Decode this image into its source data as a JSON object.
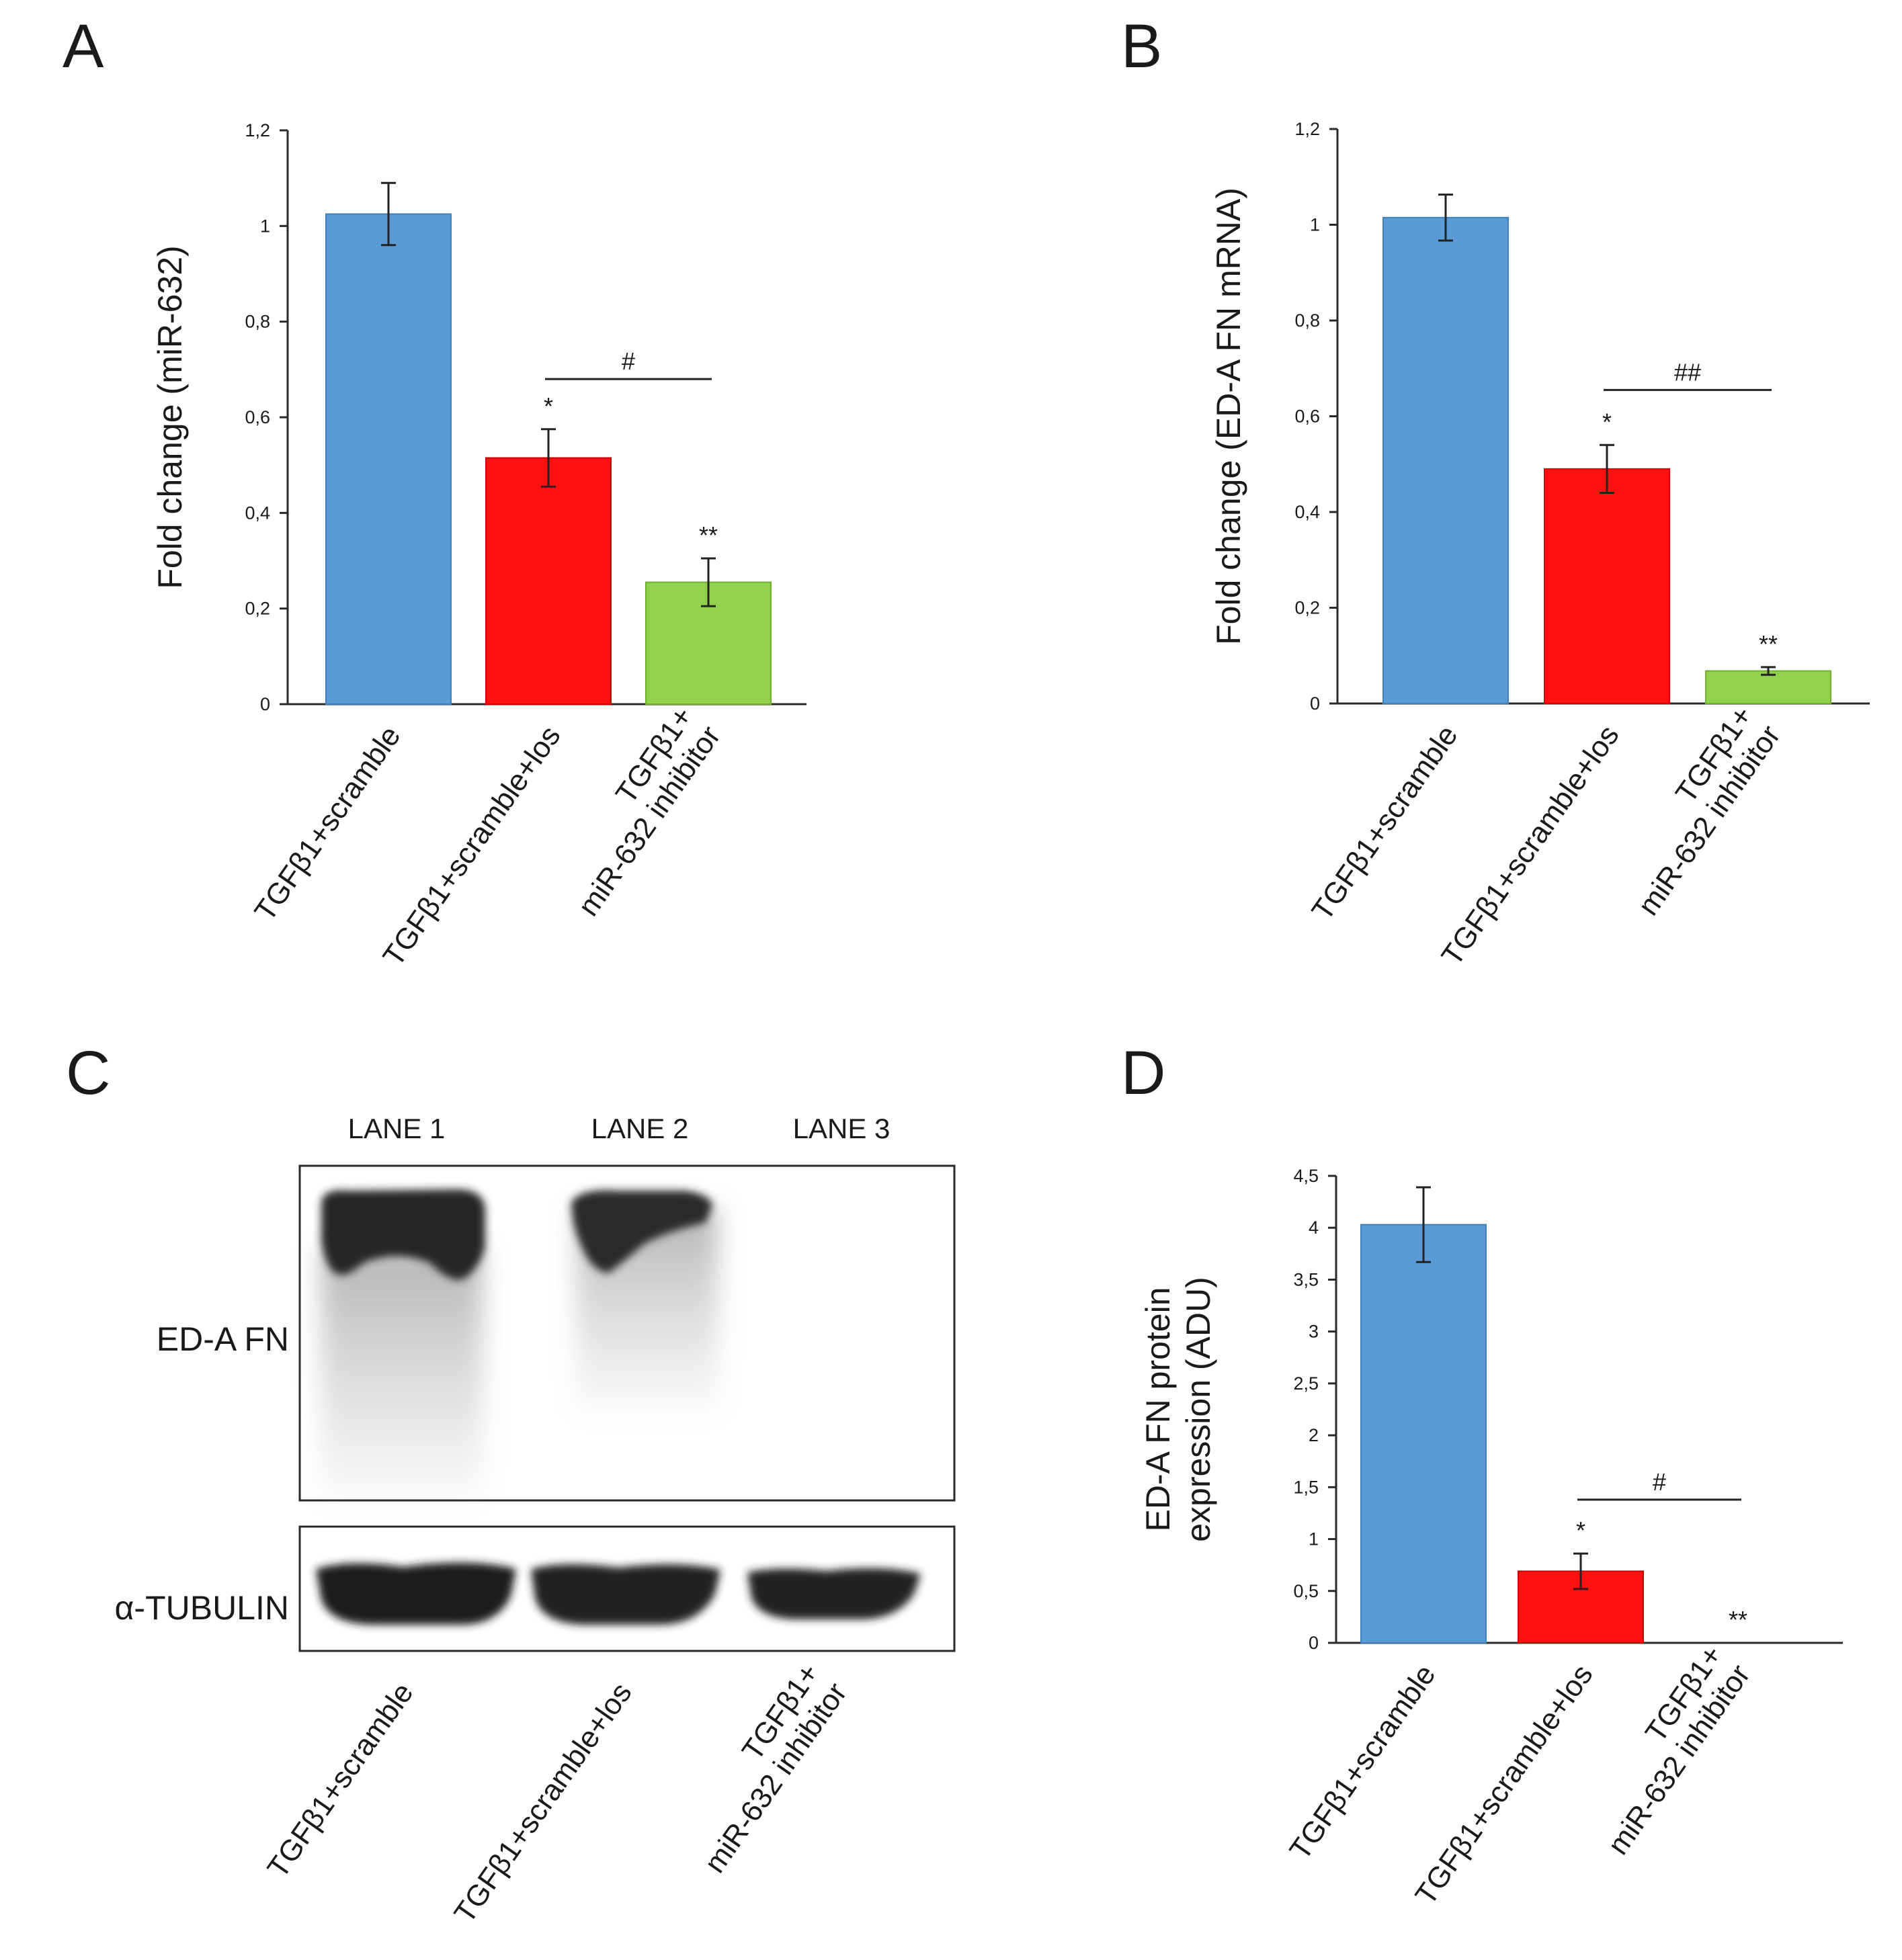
{
  "panels": {
    "A": "A",
    "B": "B",
    "C": "C",
    "D": "D"
  },
  "colors": {
    "blue": "#5b9bd5",
    "blue_edge": "#3f7fba",
    "red": "#ff1111",
    "red_edge": "#cc0000",
    "green": "#92d050",
    "green_edge": "#6fb02e"
  },
  "chart_data": [
    {
      "id": "A",
      "type": "bar",
      "ylabel": "Fold change (miR-632)",
      "ylim": [
        0,
        1.2
      ],
      "yticks": [
        "0",
        "0,2",
        "0,4",
        "0,6",
        "0,8",
        "1",
        "1,2"
      ],
      "categories": [
        [
          "TGFβ1+scramble"
        ],
        [
          "TGFβ1+scramble+los"
        ],
        [
          "TGFβ1+",
          "miR-632 inhibitor"
        ]
      ],
      "values": [
        1.025,
        0.515,
        0.255
      ],
      "errors": [
        0.065,
        0.06,
        0.05
      ],
      "markers": [
        "",
        "*",
        "**"
      ],
      "bracket": {
        "from": 1,
        "to": 2,
        "label": "#",
        "y": 0.68
      }
    },
    {
      "id": "B",
      "type": "bar",
      "ylabel": "Fold change (ED-A FN mRNA)",
      "ylim": [
        0,
        1.2
      ],
      "yticks": [
        "0",
        "0,2",
        "0,4",
        "0,6",
        "0,8",
        "1",
        "1,2"
      ],
      "categories": [
        [
          "TGFβ1+scramble"
        ],
        [
          "TGFβ1+scramble+los"
        ],
        [
          "TGFβ1+",
          "miR-632 inhibitor"
        ]
      ],
      "values": [
        1.015,
        0.49,
        0.068
      ],
      "errors": [
        0.048,
        0.05,
        0.008
      ],
      "markers": [
        "",
        "*",
        "**"
      ],
      "bracket": {
        "from": 1,
        "to": 2,
        "label": "##",
        "y": 0.655
      }
    },
    {
      "id": "D",
      "type": "bar",
      "ylabel": [
        "ED-A FN protein",
        "expression (ADU)"
      ],
      "ylim": [
        0,
        4.5
      ],
      "yticks": [
        "0",
        "0,5",
        "1",
        "1,5",
        "2",
        "2,5",
        "3",
        "3,5",
        "4",
        "4,5"
      ],
      "categories": [
        [
          "TGFβ1+scramble"
        ],
        [
          "TGFβ1+scramble+los"
        ],
        [
          "TGFβ1+",
          "miR-632 inhibitor"
        ]
      ],
      "values": [
        4.03,
        0.69,
        0.0
      ],
      "errors": [
        0.36,
        0.17,
        0.0
      ],
      "markers": [
        "",
        "*",
        "**"
      ],
      "bracket": {
        "from": 1,
        "to": 2,
        "label": "#",
        "y": 1.38
      }
    }
  ],
  "blot": {
    "lanes": [
      "LANE 1",
      "LANE 2",
      "LANE 3"
    ],
    "rows": [
      "ED-A FN",
      "α-TUBULIN"
    ],
    "categories": [
      [
        "TGFβ1+scramble"
      ],
      [
        "TGFβ1+scramble+los"
      ],
      [
        "TGFβ1+",
        "miR-632 inhibitor"
      ]
    ]
  }
}
